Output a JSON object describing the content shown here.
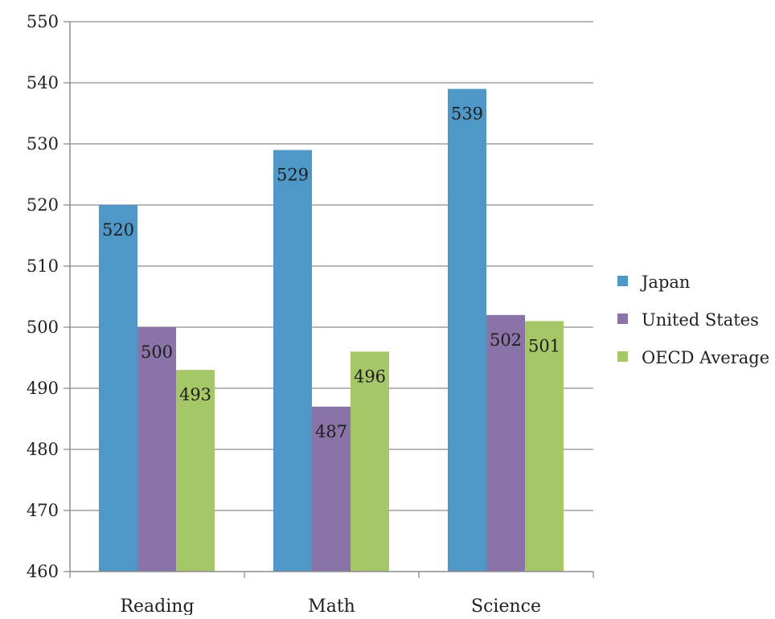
{
  "chart_data": {
    "type": "bar",
    "title": "",
    "xlabel": "",
    "ylabel": "",
    "categories": [
      "Reading",
      "Math",
      "Science"
    ],
    "series": [
      {
        "name": "Japan",
        "values": [
          520,
          529,
          539
        ]
      },
      {
        "name": "United States",
        "values": [
          500,
          487,
          502
        ]
      },
      {
        "name": "OECD Average",
        "values": [
          493,
          496,
          501
        ]
      }
    ],
    "ylim": [
      460,
      550
    ],
    "yticks": [
      "460",
      "470",
      "480",
      "490",
      "500",
      "510",
      "520",
      "530",
      "540",
      "550"
    ],
    "data_labels": [
      [
        "520",
        "529",
        "539"
      ],
      [
        "500",
        "487",
        "502"
      ],
      [
        "493",
        "496",
        "501"
      ]
    ],
    "grid": true,
    "legend_position": "right",
    "colors": {
      "Japan": "#4f97c7",
      "United States": "#8a73a6",
      "OECD Average": "#a5c768"
    }
  }
}
